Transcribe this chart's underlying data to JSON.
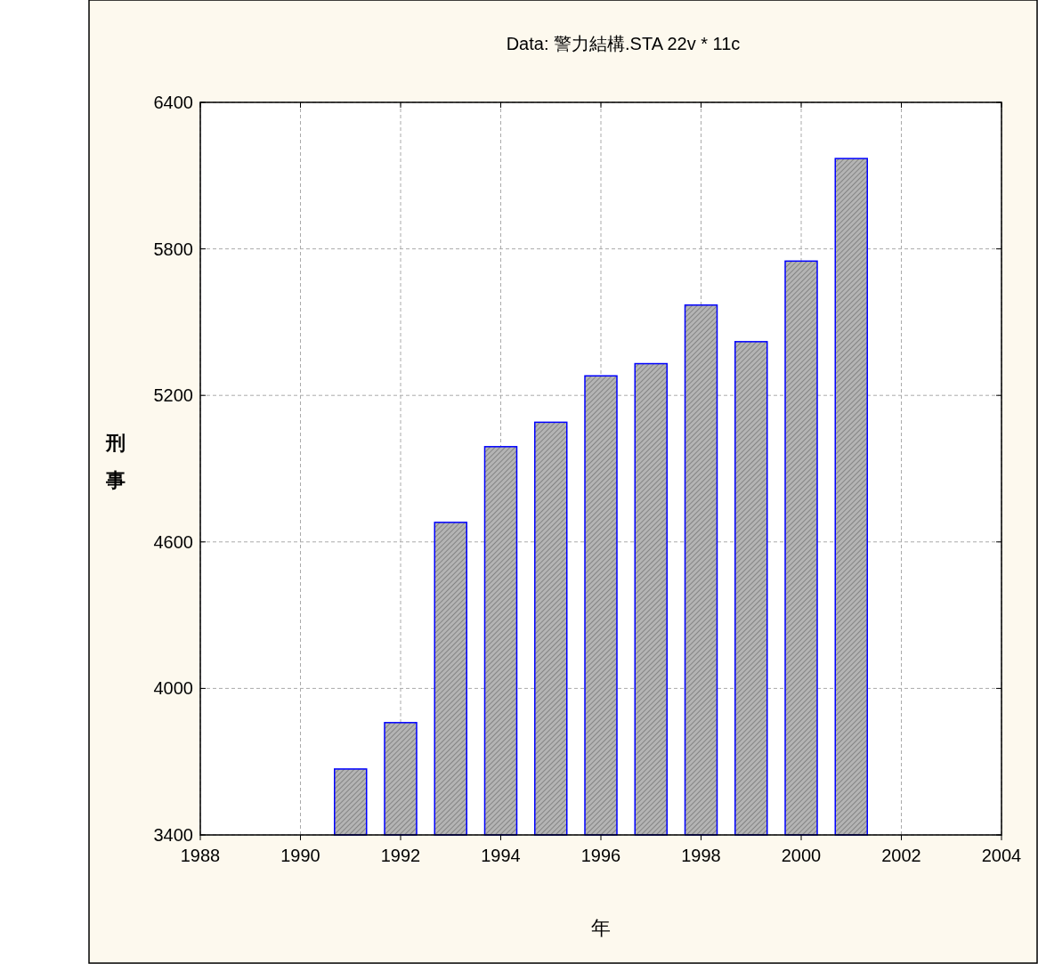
{
  "chart_data": {
    "type": "bar",
    "title": "Data: 警力結構.STA 22v * 11c",
    "xlabel": "年",
    "ylabel": "刑事",
    "x": [
      1991,
      1992,
      1993,
      1994,
      1995,
      1996,
      1997,
      1998,
      1999,
      2000,
      2001
    ],
    "values": [
      3670,
      3860,
      4680,
      4990,
      5090,
      5280,
      5330,
      5570,
      5420,
      5750,
      6170
    ],
    "color": "#0000ff",
    "xlim": [
      1988,
      2004
    ],
    "xticks": [
      1988,
      1990,
      1992,
      1994,
      1996,
      1998,
      2000,
      2002,
      2004
    ],
    "ylim": [
      3400,
      6400
    ],
    "yticks": [
      3400,
      4000,
      4600,
      5200,
      5800,
      6400
    ],
    "grid": true
  }
}
